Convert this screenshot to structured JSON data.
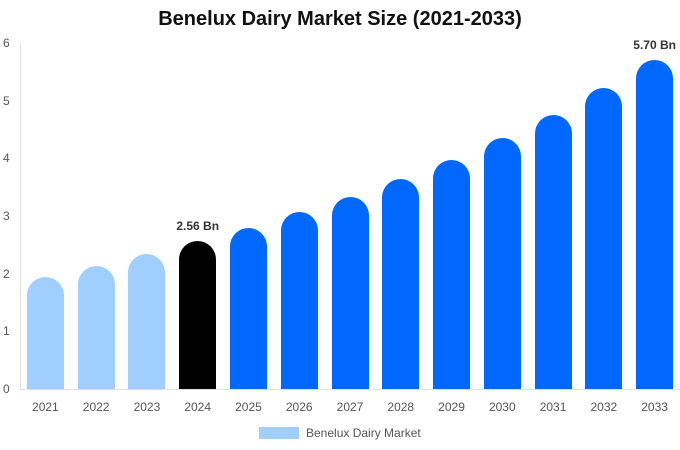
{
  "chart": {
    "title": "Benelux Dairy Market Size (2021-2033)",
    "legend_label": "Benelux Dairy Market"
  },
  "colors": {
    "historical": "#a0cfff",
    "base_year": "#000000",
    "forecast": "#0068ff",
    "axis": "#e0e0e0"
  },
  "chart_data": {
    "type": "bar",
    "title": "Benelux Dairy Market Size (2021-2033)",
    "xlabel": "",
    "ylabel": "",
    "ylim": [
      0,
      6
    ],
    "yticks": [
      0,
      1,
      2,
      3,
      4,
      5,
      6
    ],
    "grid": false,
    "legend_position": "bottom",
    "categories": [
      "2021",
      "2022",
      "2023",
      "2024",
      "2025",
      "2026",
      "2027",
      "2028",
      "2029",
      "2030",
      "2031",
      "2032",
      "2033"
    ],
    "series": [
      {
        "name": "Benelux Dairy Market",
        "values": [
          1.94,
          2.13,
          2.34,
          2.56,
          2.79,
          3.07,
          3.33,
          3.64,
          3.97,
          4.35,
          4.75,
          5.22,
          5.7
        ]
      }
    ],
    "annotations": [
      {
        "category": "2024",
        "text": "2.56 Bn"
      },
      {
        "category": "2033",
        "text": "5.70 Bn"
      }
    ],
    "bar_color_groups": {
      "historical": [
        "2021",
        "2022",
        "2023"
      ],
      "base_year": [
        "2024"
      ],
      "forecast": [
        "2025",
        "2026",
        "2027",
        "2028",
        "2029",
        "2030",
        "2031",
        "2032",
        "2033"
      ]
    }
  }
}
